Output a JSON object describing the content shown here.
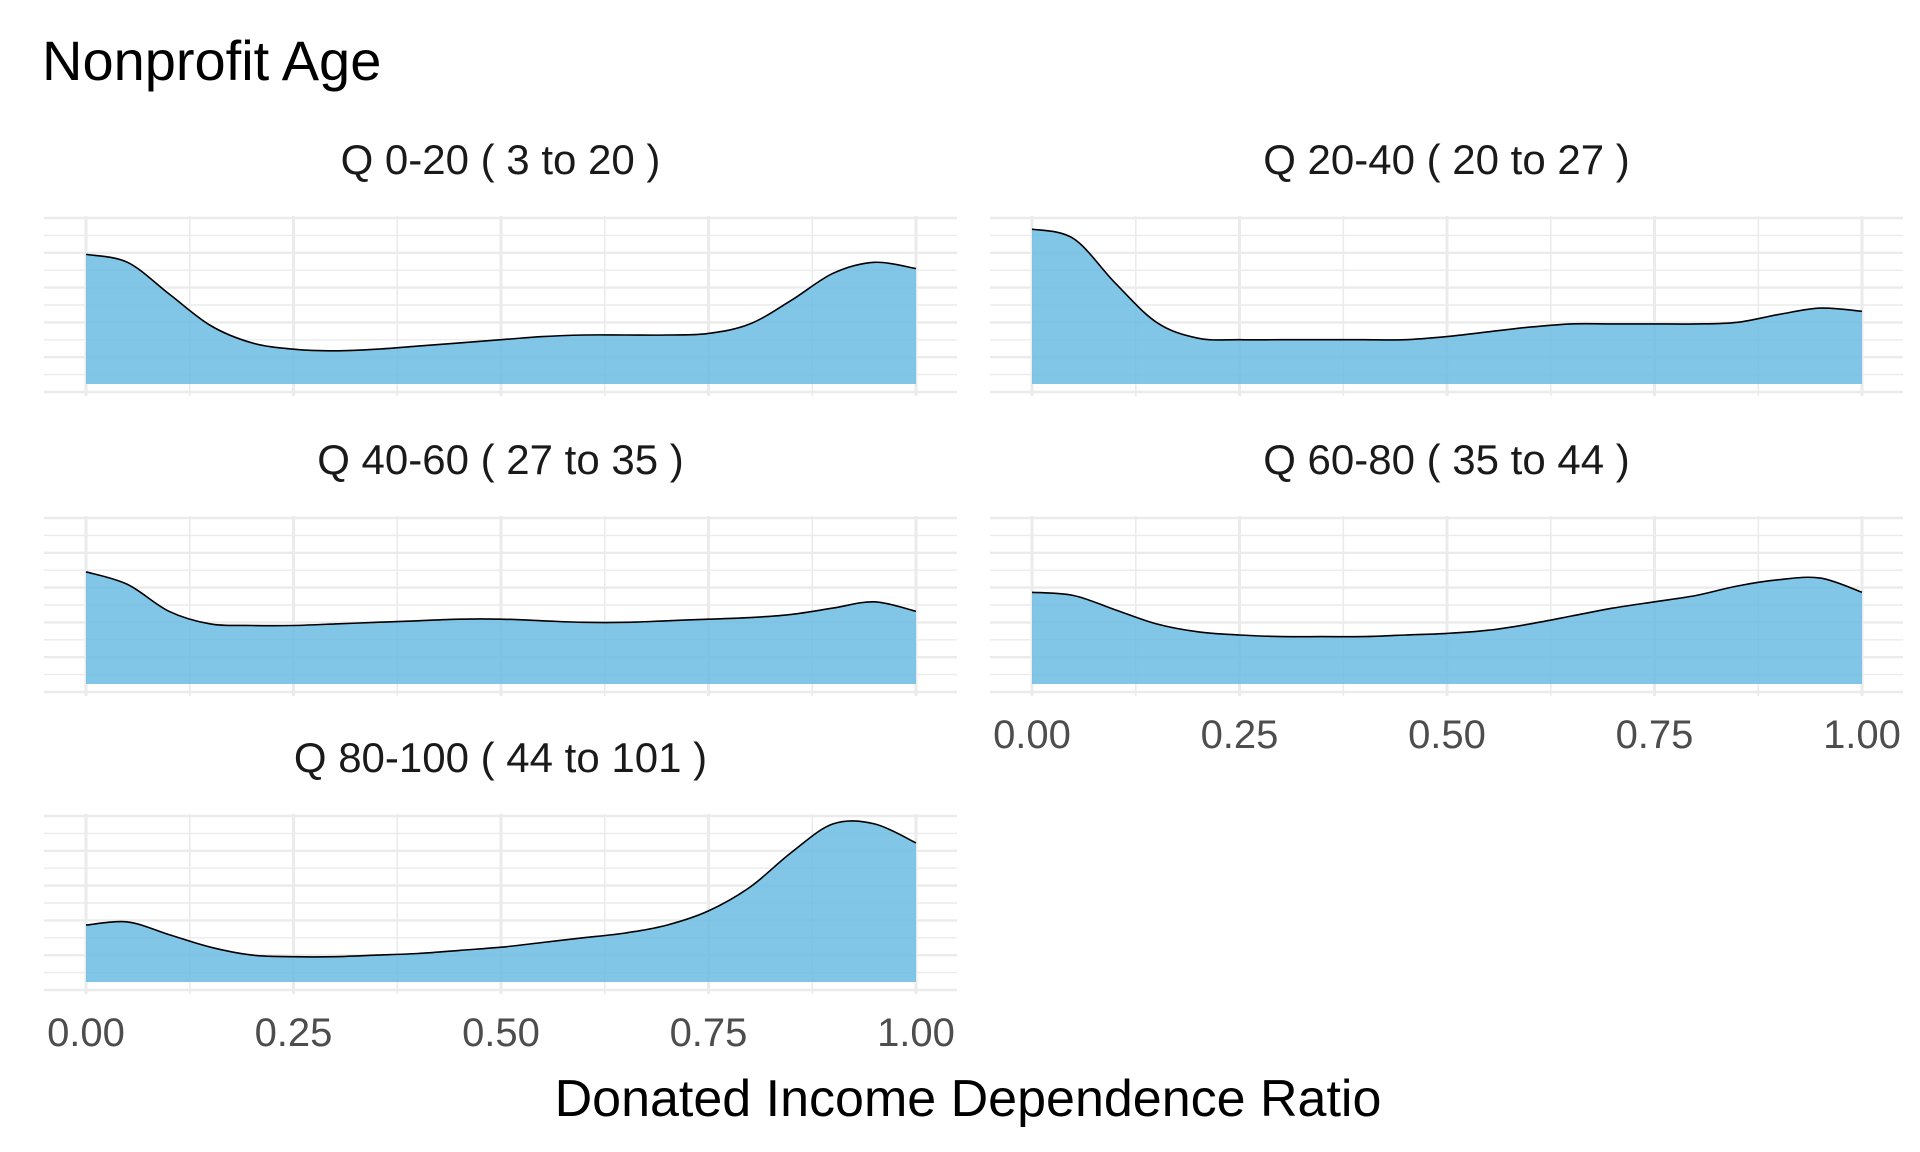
{
  "chart_data": {
    "type": "area",
    "title": "Nonprofit Age",
    "xlabel": "Donated Income Dependence Ratio",
    "ylabel": "",
    "xlim": [
      0,
      1
    ],
    "ylim": [
      0,
      1.05
    ],
    "x_ticks": [
      "0.00",
      "0.25",
      "0.50",
      "0.75",
      "1.00"
    ],
    "grid": true,
    "fill_color": "#6BBBE3",
    "line_color": "#000000",
    "x": [
      0.0,
      0.05,
      0.1,
      0.15,
      0.2,
      0.25,
      0.3,
      0.35,
      0.4,
      0.45,
      0.5,
      0.55,
      0.6,
      0.65,
      0.7,
      0.75,
      0.8,
      0.85,
      0.9,
      0.95,
      1.0
    ],
    "panels": [
      {
        "label": "Q 0-20   ( 3 to 20 )",
        "values": [
          0.82,
          0.77,
          0.57,
          0.37,
          0.26,
          0.22,
          0.21,
          0.22,
          0.24,
          0.26,
          0.28,
          0.3,
          0.31,
          0.31,
          0.31,
          0.32,
          0.38,
          0.53,
          0.7,
          0.77,
          0.73
        ]
      },
      {
        "label": "Q 20-40   ( 20 to 27 )",
        "values": [
          0.98,
          0.92,
          0.64,
          0.39,
          0.29,
          0.28,
          0.28,
          0.28,
          0.28,
          0.28,
          0.3,
          0.33,
          0.36,
          0.38,
          0.38,
          0.38,
          0.38,
          0.39,
          0.44,
          0.48,
          0.46
        ]
      },
      {
        "label": "Q 40-60   ( 27 to 35 )",
        "values": [
          0.71,
          0.63,
          0.46,
          0.38,
          0.37,
          0.37,
          0.38,
          0.39,
          0.4,
          0.41,
          0.41,
          0.4,
          0.39,
          0.39,
          0.4,
          0.41,
          0.42,
          0.44,
          0.48,
          0.52,
          0.46
        ]
      },
      {
        "label": "Q 60-80   ( 35 to 44 )",
        "values": [
          0.58,
          0.56,
          0.47,
          0.38,
          0.33,
          0.31,
          0.3,
          0.3,
          0.3,
          0.31,
          0.32,
          0.34,
          0.38,
          0.43,
          0.48,
          0.52,
          0.56,
          0.62,
          0.66,
          0.67,
          0.58
        ]
      },
      {
        "label": "Q 80-100   ( 44 to 101 )",
        "values": [
          0.36,
          0.38,
          0.3,
          0.22,
          0.17,
          0.16,
          0.16,
          0.17,
          0.18,
          0.2,
          0.22,
          0.25,
          0.28,
          0.31,
          0.36,
          0.45,
          0.6,
          0.82,
          1.0,
          1.0,
          0.88
        ]
      }
    ]
  }
}
